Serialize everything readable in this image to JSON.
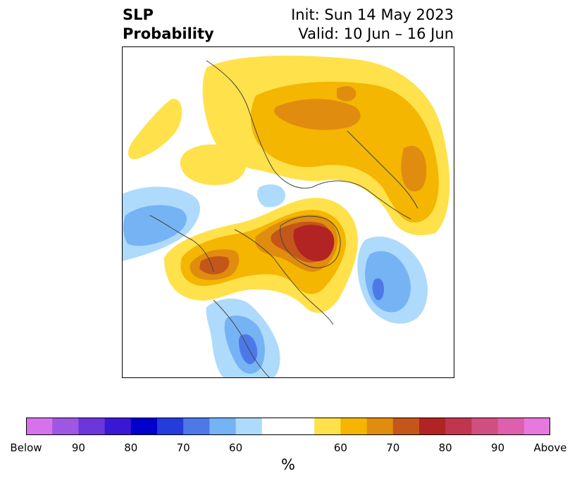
{
  "title": {
    "left_line1": "SLP",
    "left_line2": "Probability",
    "right_line1": "Init: Sun 14 May 2023",
    "right_line2": "Valid: 10 Jun – 16 Jun"
  },
  "colorbar": {
    "unit_label": "%",
    "colors": [
      "#d673ea",
      "#9e57e3",
      "#6b36da",
      "#3a18d3",
      "#0000cc",
      "#233cdb",
      "#4d79e8",
      "#75b3f4",
      "#aedbfb",
      "#ffffff",
      "#ffffff",
      "#ffe14b",
      "#f4b600",
      "#e08c0f",
      "#c4561a",
      "#b22323",
      "#c0364f",
      "#d04e80",
      "#dd5fad",
      "#e678de"
    ],
    "tick_labels": [
      "Below",
      "90",
      "80",
      "70",
      "60",
      "60",
      "70",
      "80",
      "90",
      "Above"
    ]
  },
  "map_colors": {
    "above_60": "#ffe14b",
    "above_65": "#f4b600",
    "above_70": "#e08c0f",
    "above_75": "#c4561a",
    "above_80": "#b22323",
    "below_60": "#aedbfb",
    "below_65": "#75b3f4",
    "below_70": "#4d79e8"
  }
}
